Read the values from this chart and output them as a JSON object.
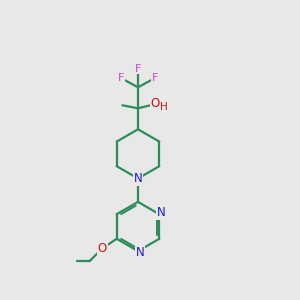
{
  "background_color": "#e8e8e8",
  "bond_color": "#2d8c5a",
  "N_color": "#1a1acc",
  "O_color": "#cc1111",
  "F_color": "#cc44cc",
  "H_color": "#cc1111",
  "line_width": 1.6,
  "figsize": [
    3.0,
    3.0
  ],
  "dpi": 100,
  "xlim": [
    0,
    10
  ],
  "ylim": [
    0,
    10
  ]
}
